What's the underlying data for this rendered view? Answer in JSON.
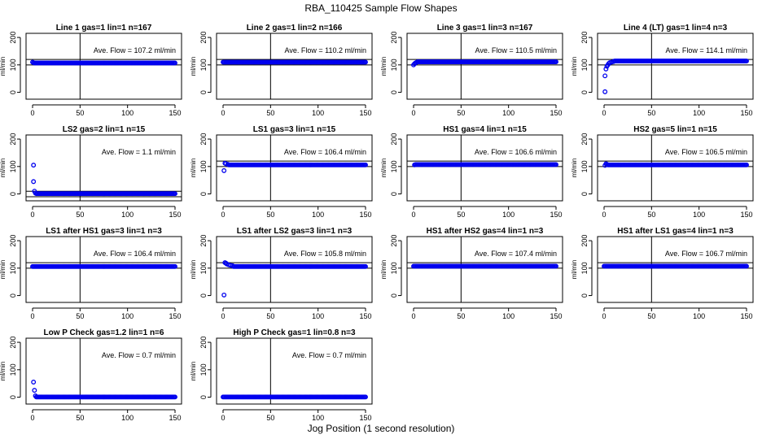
{
  "title": "RBA_110425  Sample Flow Shapes",
  "xlabel": "Jog Position (1 second resolution)",
  "colors": {
    "points": "#0000ee",
    "axis": "#000000"
  },
  "chart_data": [
    {
      "type": "scatter",
      "title": "Line 1 gas=1 lin=1 n=167",
      "ylabel": "ml/min",
      "annotation": "Ave. Flow = 107.2  ml/min",
      "xlim": [
        0,
        150
      ],
      "ylim": [
        -25,
        215
      ],
      "xticks": [
        0,
        50,
        100,
        150
      ],
      "yticks": [
        0,
        100,
        200
      ],
      "vline": 50,
      "hlines": [
        100,
        120
      ],
      "flat_value": 107,
      "start_points": [
        [
          0,
          110
        ],
        [
          1,
          108
        ]
      ]
    },
    {
      "type": "scatter",
      "title": "Line 2 gas=1 lin=2 n=166",
      "ylabel": "ml/min",
      "annotation": "Ave. Flow = 110.2  ml/min",
      "xlim": [
        0,
        150
      ],
      "ylim": [
        -25,
        215
      ],
      "xticks": [
        0,
        50,
        100,
        150
      ],
      "yticks": [
        0,
        100,
        200
      ],
      "vline": 50,
      "hlines": [
        100,
        120
      ],
      "flat_value": 110,
      "start_points": [
        [
          0,
          110
        ]
      ]
    },
    {
      "type": "scatter",
      "title": "Line 3 gas=1 lin=3 n=167",
      "ylabel": "ml/min",
      "annotation": "Ave. Flow = 110.5  ml/min",
      "xlim": [
        0,
        150
      ],
      "ylim": [
        -25,
        215
      ],
      "xticks": [
        0,
        50,
        100,
        150
      ],
      "yticks": [
        0,
        100,
        200
      ],
      "vline": 50,
      "hlines": [
        100,
        120
      ],
      "flat_value": 111,
      "start_points": [
        [
          0,
          100
        ],
        [
          1,
          104
        ],
        [
          2,
          107
        ],
        [
          3,
          109
        ]
      ]
    },
    {
      "type": "scatter",
      "title": "Line 4 (LT) gas=1 lin=4 n=3",
      "ylabel": "ml/min",
      "annotation": "Ave. Flow = 114.1  ml/min",
      "xlim": [
        0,
        150
      ],
      "ylim": [
        -25,
        215
      ],
      "xticks": [
        0,
        50,
        100,
        150
      ],
      "yticks": [
        0,
        100,
        200
      ],
      "vline": 50,
      "hlines": [
        100,
        120
      ],
      "flat_value": 114,
      "start_points": [
        [
          1,
          2
        ],
        [
          1,
          60
        ],
        [
          2,
          85
        ],
        [
          3,
          95
        ],
        [
          4,
          100
        ],
        [
          5,
          105
        ],
        [
          6,
          108
        ],
        [
          8,
          110
        ],
        [
          10,
          112
        ]
      ]
    },
    {
      "type": "scatter",
      "title": "LS2 gas=2 lin=1 n=15",
      "ylabel": "ml/min",
      "annotation": "Ave. Flow = 1.1  ml/min",
      "xlim": [
        0,
        150
      ],
      "ylim": [
        -25,
        215
      ],
      "xticks": [
        0,
        50,
        100,
        150
      ],
      "yticks": [
        0,
        100,
        200
      ],
      "vline": 50,
      "hlines": [
        -10,
        10
      ],
      "flat_value": 1,
      "start_points": [
        [
          1,
          105
        ],
        [
          1,
          45
        ],
        [
          2,
          10
        ],
        [
          3,
          3
        ]
      ]
    },
    {
      "type": "scatter",
      "title": "LS1 gas=3 lin=1 n=15",
      "ylabel": "ml/min",
      "annotation": "Ave. Flow = 106.4  ml/min",
      "xlim": [
        0,
        150
      ],
      "ylim": [
        -25,
        215
      ],
      "xticks": [
        0,
        50,
        100,
        150
      ],
      "yticks": [
        0,
        100,
        200
      ],
      "vline": 50,
      "hlines": [
        100,
        120
      ],
      "flat_value": 106,
      "start_points": [
        [
          1,
          85
        ],
        [
          2,
          112
        ],
        [
          3,
          110
        ],
        [
          5,
          108
        ]
      ]
    },
    {
      "type": "scatter",
      "title": "HS1 gas=4 lin=1 n=15",
      "ylabel": "ml/min",
      "annotation": "Ave. Flow = 106.6  ml/min",
      "xlim": [
        0,
        150
      ],
      "ylim": [
        -25,
        215
      ],
      "xticks": [
        0,
        50,
        100,
        150
      ],
      "yticks": [
        0,
        100,
        200
      ],
      "vline": 50,
      "hlines": [
        100,
        120
      ],
      "flat_value": 107,
      "start_points": [
        [
          1,
          106
        ]
      ]
    },
    {
      "type": "scatter",
      "title": "HS2 gas=5 lin=1 n=15",
      "ylabel": "ml/min",
      "annotation": "Ave. Flow = 106.5  ml/min",
      "xlim": [
        0,
        150
      ],
      "ylim": [
        -25,
        215
      ],
      "xticks": [
        0,
        50,
        100,
        150
      ],
      "yticks": [
        0,
        100,
        200
      ],
      "vline": 50,
      "hlines": [
        100,
        120
      ],
      "flat_value": 106,
      "start_points": [
        [
          1,
          104
        ],
        [
          2,
          110
        ],
        [
          3,
          108
        ]
      ]
    },
    {
      "type": "scatter",
      "title": "LS1 after HS1 gas=3 lin=1 n=3",
      "ylabel": "ml/min",
      "annotation": "Ave. Flow = 106.4  ml/min",
      "xlim": [
        0,
        150
      ],
      "ylim": [
        -25,
        215
      ],
      "xticks": [
        0,
        50,
        100,
        150
      ],
      "yticks": [
        0,
        100,
        200
      ],
      "vline": 50,
      "hlines": [
        100,
        120
      ],
      "flat_value": 106,
      "start_points": [
        [
          0,
          106
        ]
      ]
    },
    {
      "type": "scatter",
      "title": "LS1 after LS2 gas=3 lin=1 n=3",
      "ylabel": "ml/min",
      "annotation": "Ave. Flow = 105.8  ml/min",
      "xlim": [
        0,
        150
      ],
      "ylim": [
        -25,
        215
      ],
      "xticks": [
        0,
        50,
        100,
        150
      ],
      "yticks": [
        0,
        100,
        200
      ],
      "vline": 50,
      "hlines": [
        100,
        120
      ],
      "flat_value": 106,
      "start_points": [
        [
          1,
          2
        ],
        [
          2,
          120
        ],
        [
          3,
          118
        ],
        [
          4,
          115
        ],
        [
          6,
          112
        ],
        [
          8,
          110
        ],
        [
          10,
          109
        ]
      ]
    },
    {
      "type": "scatter",
      "title": "HS1 after HS2 gas=4 lin=1 n=3",
      "ylabel": "ml/min",
      "annotation": "Ave. Flow = 107.4  ml/min",
      "xlim": [
        0,
        150
      ],
      "ylim": [
        -25,
        215
      ],
      "xticks": [
        0,
        50,
        100,
        150
      ],
      "yticks": [
        0,
        100,
        200
      ],
      "vline": 50,
      "hlines": [
        100,
        120
      ],
      "flat_value": 107,
      "start_points": [
        [
          0,
          107
        ]
      ]
    },
    {
      "type": "scatter",
      "title": "HS1 after LS1 gas=4 lin=1 n=3",
      "ylabel": "ml/min",
      "annotation": "Ave. Flow = 106.7  ml/min",
      "xlim": [
        0,
        150
      ],
      "ylim": [
        -25,
        215
      ],
      "xticks": [
        0,
        50,
        100,
        150
      ],
      "yticks": [
        0,
        100,
        200
      ],
      "vline": 50,
      "hlines": [
        100,
        120
      ],
      "flat_value": 107,
      "start_points": [
        [
          0,
          107
        ]
      ]
    },
    {
      "type": "scatter",
      "title": "Low P Check gas=1.2 lin=1 n=6",
      "ylabel": "ml/min",
      "annotation": "Ave. Flow = 0.7  ml/min",
      "xlim": [
        0,
        150
      ],
      "ylim": [
        -25,
        215
      ],
      "xticks": [
        0,
        50,
        100,
        150
      ],
      "yticks": [
        0,
        100,
        200
      ],
      "vline": 50,
      "hlines": [],
      "flat_value": 0.7,
      "start_points": [
        [
          1,
          55
        ],
        [
          2,
          25
        ],
        [
          3,
          5
        ]
      ]
    },
    {
      "type": "scatter",
      "title": "High P Check gas=1 lin=0.8 n=3",
      "ylabel": "ml/min",
      "annotation": "Ave. Flow = 0.7  ml/min",
      "xlim": [
        0,
        150
      ],
      "ylim": [
        -25,
        215
      ],
      "xticks": [
        0,
        50,
        100,
        150
      ],
      "yticks": [
        0,
        100,
        200
      ],
      "vline": 50,
      "hlines": [],
      "flat_value": 0.7,
      "start_points": [
        [
          0,
          0.7
        ]
      ]
    }
  ]
}
